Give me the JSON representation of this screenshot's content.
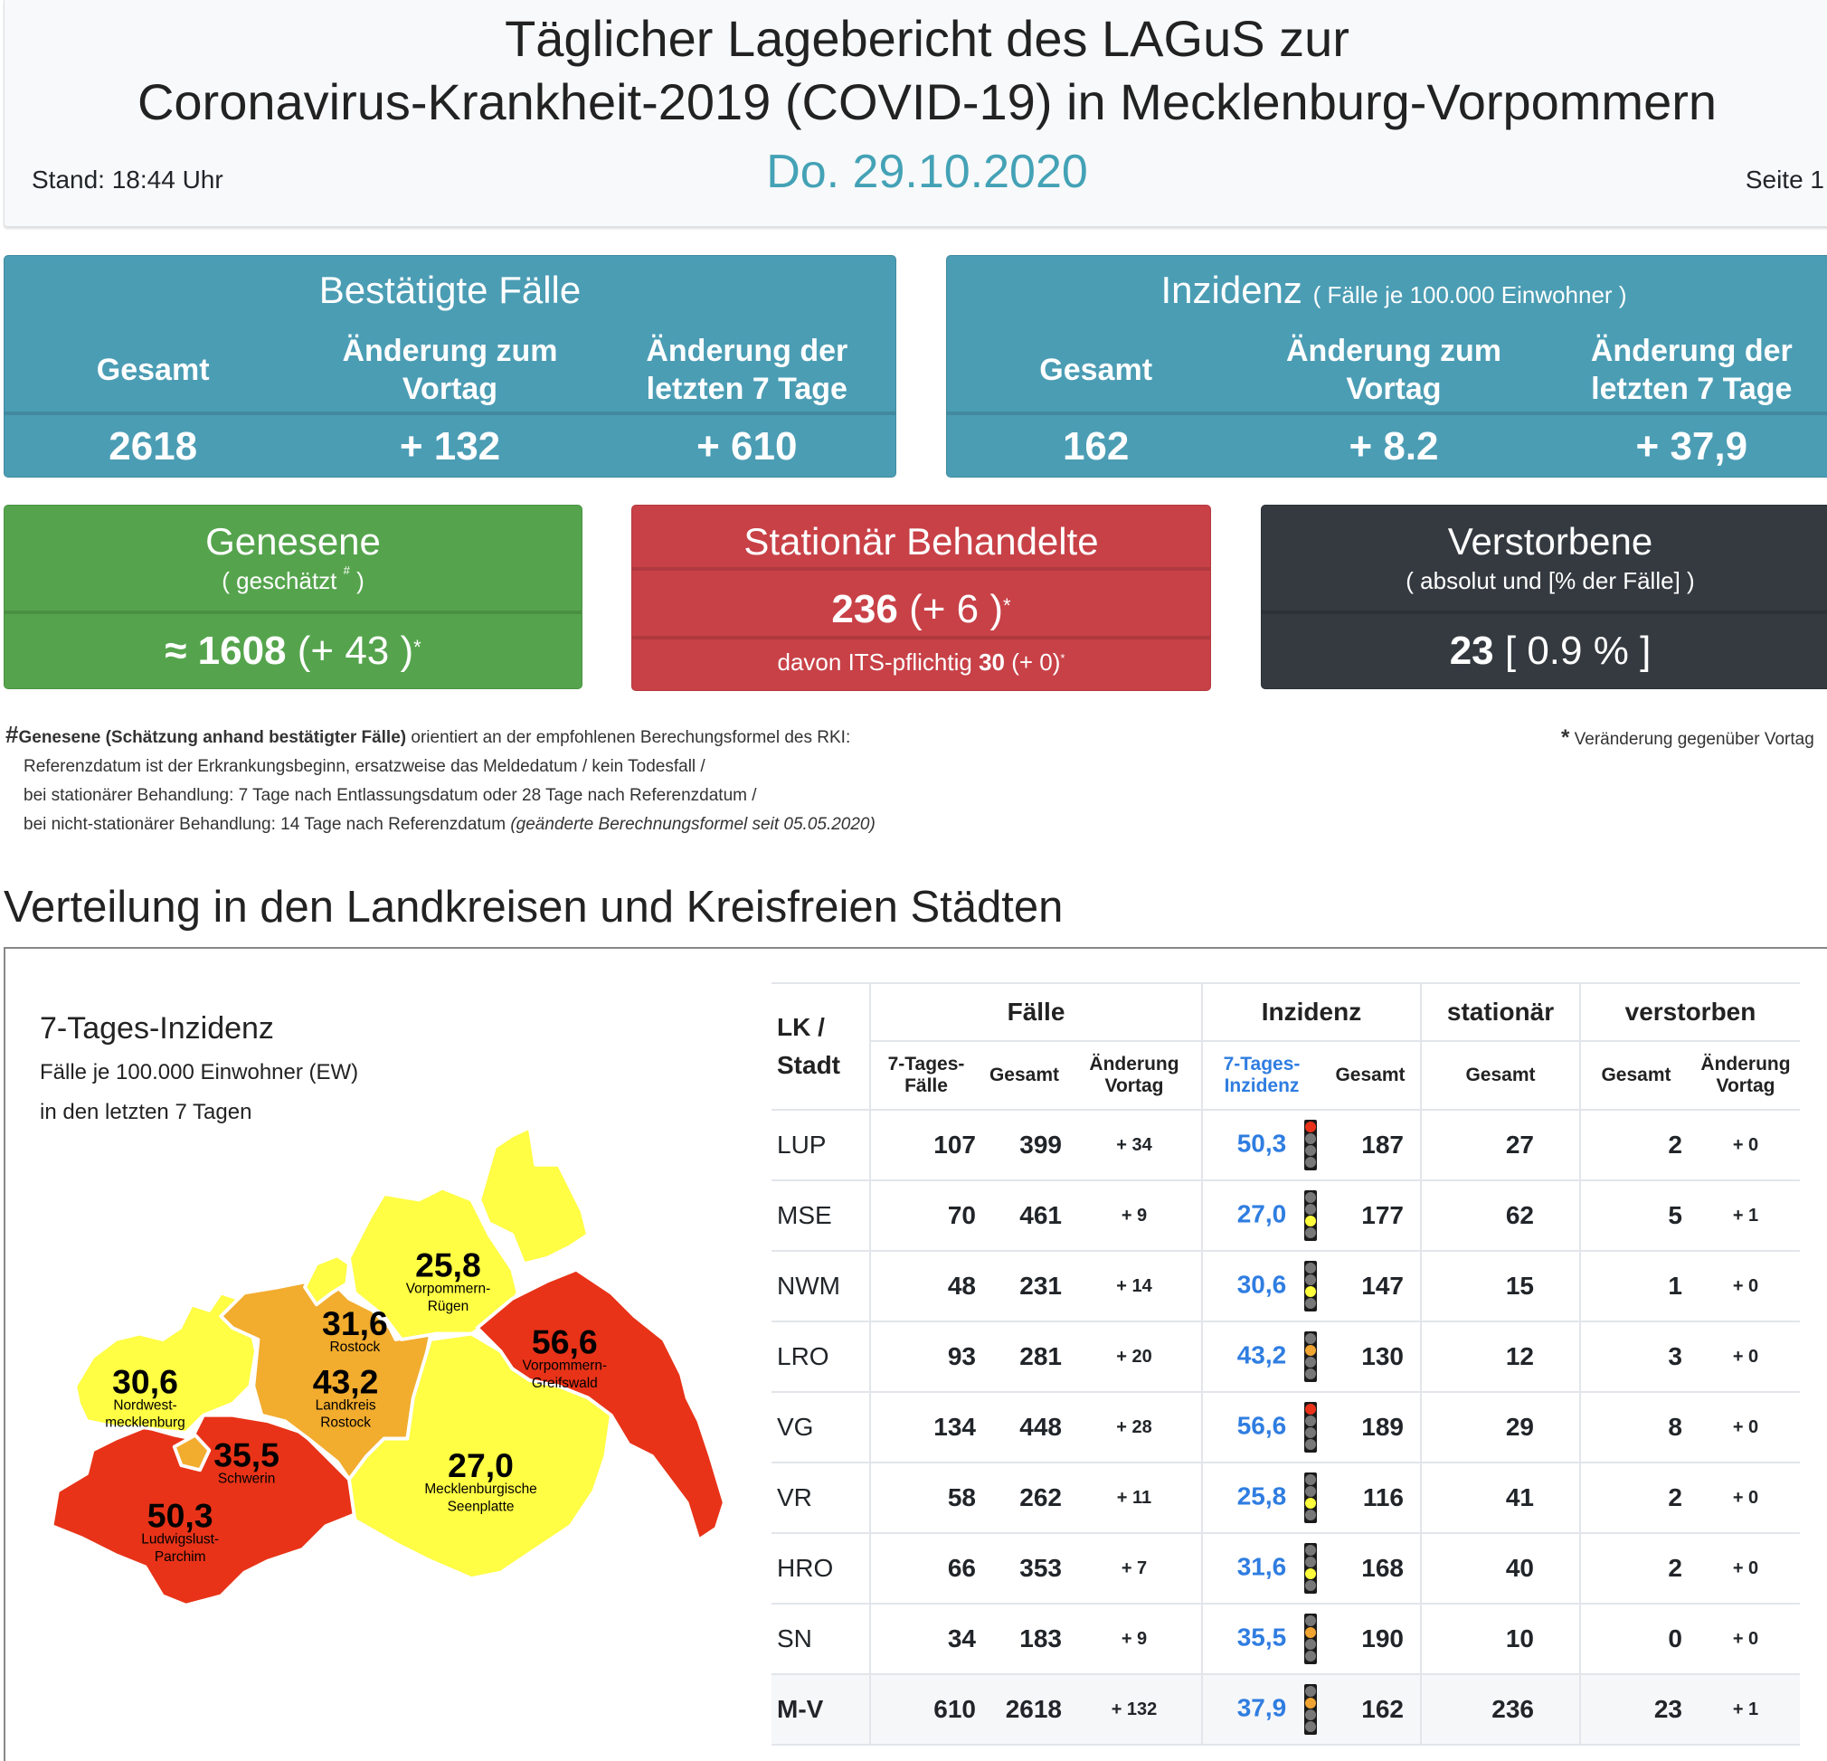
{
  "header": {
    "title_line1": "Täglicher Lagebericht des LAGuS zur",
    "title_line2": "Coronavirus-Krankheit-2019 (COVID-19) in Mecklenburg-Vorpommern",
    "date": "Do. 29.10.2020",
    "stand": "Stand: 18:44 Uhr",
    "page": "Seite 1"
  },
  "confirmed": {
    "title": "Bestätigte Fälle",
    "cols": [
      "Gesamt",
      "Änderung zum Vortag",
      "Änderung der letzten 7 Tage"
    ],
    "values": [
      "2618",
      "+ 132",
      "+ 610"
    ]
  },
  "incidence": {
    "title": "Inzidenz",
    "subtitle": "( Fälle je 100.000 Einwohner )",
    "cols": [
      "Gesamt",
      "Änderung zum Vortag",
      "Änderung der letzten 7 Tage"
    ],
    "values": [
      "162",
      "+ 8.2",
      "+ 37,9"
    ]
  },
  "recovered": {
    "title": "Genesene",
    "subtitle": "( geschätzt",
    "subtitle_mark": "#",
    "subtitle_end": " )",
    "prefix": "≈ ",
    "value": "1608",
    "change": " (+ 43 )",
    "star": "*"
  },
  "hospital": {
    "title": "Stationär Behandelte",
    "value": "236",
    "change": " (+ 6 )",
    "star": "*",
    "its_label": "davon ITS-pflichtig ",
    "its_value": "30",
    "its_change": " (+ 0)",
    "its_star": "*"
  },
  "deaths": {
    "title": "Verstorbene",
    "subtitle": "( absolut und [% der Fälle] )",
    "value": "23",
    "pct": " [ 0.9 % ]"
  },
  "footnotes": {
    "hash": "#",
    "bold": "Genesene (Schätzung anhand bestätigter Fälle)",
    "line1": " orientiert an der empfohlenen Berechungsformel des RKI:",
    "line2": "Referenzdatum ist der Erkrankungsbeginn, ersatzweise das Meldedatum / kein Todesfall /",
    "line3": "bei stationärer Behandlung: 7 Tage nach Entlassungsdatum oder 28 Tage nach Referenzdatum /",
    "line4a": "bei nicht-stationärer Behandlung: 14 Tage nach Referenzdatum ",
    "line4b": "(geänderte Berechnungsformel seit 05.05.2020)",
    "star": "*",
    "star_text": " Veränderung gegenüber Vortag"
  },
  "section_title": "Verteilung in den Landkreisen und Kreisfreien Städten",
  "map": {
    "title": "7-Tages-Inzidenz",
    "sub1": "Fälle je 100.000 Einwohner (EW)",
    "sub2": "in den letzten 7 Tagen",
    "colors": {
      "red": "#e83318",
      "orange": "#f2ac2e",
      "yellow": "#fffd44"
    },
    "regions": [
      {
        "id": "VR",
        "value": "25,8",
        "name1": "Vorpommern-",
        "name2": "Rügen",
        "color": "yellow"
      },
      {
        "id": "HRO",
        "value": "31,6",
        "name1": "Rostock",
        "name2": "",
        "color": "yellow"
      },
      {
        "id": "VG",
        "value": "56,6",
        "name1": "Vorpommern-",
        "name2": "Greifswald",
        "color": "red"
      },
      {
        "id": "NWM",
        "value": "30,6",
        "name1": "Nordwest-",
        "name2": "mecklenburg",
        "color": "yellow"
      },
      {
        "id": "LRO",
        "value": "43,2",
        "name1": "Landkreis",
        "name2": "Rostock",
        "color": "orange"
      },
      {
        "id": "SN",
        "value": "35,5",
        "name1": "Schwerin",
        "name2": "",
        "color": "orange"
      },
      {
        "id": "MSE",
        "value": "27,0",
        "name1": "Mecklenburgische",
        "name2": "Seenplatte",
        "color": "yellow"
      },
      {
        "id": "LUP",
        "value": "50,3",
        "name1": "Ludwigslust-",
        "name2": "Parchim",
        "color": "red"
      }
    ]
  },
  "table": {
    "group_headers": {
      "lk": "LK /",
      "lk2": "Stadt",
      "faelle": "Fälle",
      "inzidenz": "Inzidenz",
      "stationaer": "stationär",
      "verstorben": "verstorben"
    },
    "sub_headers": {
      "f7a": "7-Tages-",
      "f7b": "Fälle",
      "fges": "Gesamt",
      "fdiffa": "Änderung",
      "fdiffb": "Vortag",
      "i7a": "7-Tages-",
      "i7b": "Inzidenz",
      "iges": "Gesamt",
      "sges": "Gesamt",
      "vges": "Gesamt",
      "vdiffa": "Änderung",
      "vdiffb": "Vortag"
    },
    "rows": [
      {
        "lk": "LUP",
        "f7": "107",
        "fges": "399",
        "fdiff": "+ 34",
        "i7": "50,3",
        "light": "red",
        "iges": "187",
        "sges": "27",
        "vges": "2",
        "vdiff": "+ 0"
      },
      {
        "lk": "MSE",
        "f7": "70",
        "fges": "461",
        "fdiff": "+ 9",
        "i7": "27,0",
        "light": "yellow",
        "iges": "177",
        "sges": "62",
        "vges": "5",
        "vdiff": "+ 1"
      },
      {
        "lk": "NWM",
        "f7": "48",
        "fges": "231",
        "fdiff": "+ 14",
        "i7": "30,6",
        "light": "yellow",
        "iges": "147",
        "sges": "15",
        "vges": "1",
        "vdiff": "+ 0"
      },
      {
        "lk": "LRO",
        "f7": "93",
        "fges": "281",
        "fdiff": "+ 20",
        "i7": "43,2",
        "light": "orange",
        "iges": "130",
        "sges": "12",
        "vges": "3",
        "vdiff": "+ 0"
      },
      {
        "lk": "VG",
        "f7": "134",
        "fges": "448",
        "fdiff": "+ 28",
        "i7": "56,6",
        "light": "red",
        "iges": "189",
        "sges": "29",
        "vges": "8",
        "vdiff": "+ 0"
      },
      {
        "lk": "VR",
        "f7": "58",
        "fges": "262",
        "fdiff": "+ 11",
        "i7": "25,8",
        "light": "yellow",
        "iges": "116",
        "sges": "41",
        "vges": "2",
        "vdiff": "+ 0"
      },
      {
        "lk": "HRO",
        "f7": "66",
        "fges": "353",
        "fdiff": "+ 7",
        "i7": "31,6",
        "light": "yellow",
        "iges": "168",
        "sges": "40",
        "vges": "2",
        "vdiff": "+ 0"
      },
      {
        "lk": "SN",
        "f7": "34",
        "fges": "183",
        "fdiff": "+ 9",
        "i7": "35,5",
        "light": "orange",
        "iges": "190",
        "sges": "10",
        "vges": "0",
        "vdiff": "+ 0"
      },
      {
        "lk": "M-V",
        "f7": "610",
        "fges": "2618",
        "fdiff": "+ 132",
        "i7": "37,9",
        "light": "orange",
        "iges": "162",
        "sges": "236",
        "vges": "23",
        "vdiff": "+ 1",
        "total": true
      }
    ]
  },
  "light_colors": {
    "red": "#e8321a",
    "orange": "#f0a431",
    "yellow": "#fdfd3c",
    "green": "#3cb043",
    "off": "#777777"
  }
}
